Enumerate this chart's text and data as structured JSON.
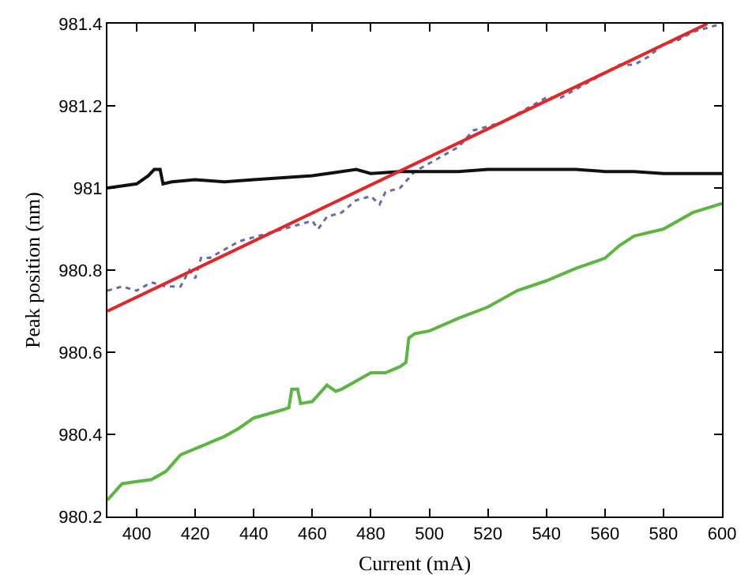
{
  "chart_data": {
    "type": "line",
    "xlabel": "Current (mA)",
    "ylabel": "Peak position (nm)",
    "xlim": [
      390,
      600
    ],
    "xticks": [
      400,
      420,
      440,
      460,
      480,
      500,
      520,
      540,
      560,
      580,
      600
    ],
    "ylim": [
      980.2,
      981.4
    ],
    "yticks": [
      980.2,
      980.4,
      980.6,
      980.8,
      981,
      981.2,
      981.4
    ],
    "marker": "none",
    "series": [
      {
        "color": "#6a6aa8",
        "line_style": "dotted",
        "x": [
          390,
          395,
          400,
          405,
          410,
          415,
          418,
          420,
          422,
          425,
          430,
          435,
          440,
          445,
          460,
          462,
          465,
          470,
          475,
          480,
          483,
          485,
          490,
          495,
          500,
          505,
          510,
          515,
          520,
          525,
          530,
          535,
          540,
          545,
          550,
          555,
          560,
          565,
          570,
          575,
          580,
          585,
          590,
          595,
          600
        ],
        "values": [
          980.75,
          980.76,
          980.75,
          980.77,
          980.76,
          980.76,
          980.8,
          980.78,
          980.83,
          980.83,
          980.85,
          980.87,
          980.88,
          980.89,
          980.92,
          980.9,
          980.93,
          980.94,
          980.97,
          980.98,
          980.96,
          980.99,
          981.0,
          981.04,
          981.06,
          981.08,
          981.1,
          981.14,
          981.15,
          981.16,
          981.18,
          981.2,
          981.22,
          981.22,
          981.24,
          981.26,
          981.28,
          981.3,
          981.3,
          981.32,
          981.35,
          981.36,
          981.38,
          981.39,
          981.4
        ]
      },
      {
        "color": "#111111",
        "line_style": "solid",
        "x": [
          390,
          400,
          404,
          406,
          408,
          409,
          412,
          420,
          430,
          440,
          450,
          460,
          470,
          475,
          480,
          490,
          500,
          510,
          520,
          530,
          540,
          550,
          560,
          570,
          580,
          590,
          600
        ],
        "values": [
          981.0,
          981.01,
          981.03,
          981.045,
          981.045,
          981.01,
          981.015,
          981.02,
          981.015,
          981.02,
          981.025,
          981.03,
          981.04,
          981.045,
          981.035,
          981.04,
          981.04,
          981.04,
          981.045,
          981.045,
          981.045,
          981.045,
          981.04,
          981.04,
          981.035,
          981.035,
          981.035
        ]
      },
      {
        "color": "#5db543",
        "line_style": "solid",
        "x": [
          390,
          395,
          400,
          405,
          410,
          415,
          420,
          425,
          430,
          435,
          440,
          445,
          450,
          452,
          453,
          455,
          456,
          460,
          465,
          468,
          470,
          475,
          480,
          485,
          490,
          492,
          493,
          495,
          500,
          510,
          520,
          530,
          540,
          550,
          560,
          565,
          570,
          580,
          590,
          600
        ],
        "values": [
          980.24,
          980.28,
          980.285,
          980.29,
          980.31,
          980.35,
          980.365,
          980.38,
          980.395,
          980.415,
          980.44,
          980.45,
          980.46,
          980.465,
          980.51,
          980.51,
          980.475,
          980.48,
          980.52,
          980.505,
          980.51,
          980.53,
          980.55,
          980.55,
          980.565,
          980.575,
          980.635,
          980.645,
          980.652,
          980.683,
          980.71,
          980.75,
          980.774,
          980.804,
          980.829,
          980.86,
          980.883,
          980.9,
          980.94,
          980.962
        ]
      },
      {
        "color": "#e0282a",
        "line_style": "solid",
        "x": [
          390,
          595
        ],
        "values": [
          980.7,
          981.4
        ]
      }
    ]
  }
}
